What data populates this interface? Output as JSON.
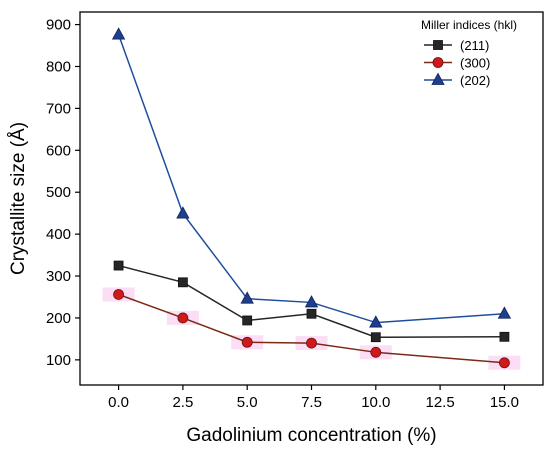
{
  "chart_data": {
    "type": "line",
    "xlabel": "Gadolinium concentration (%)",
    "ylabel": "Crystallite size (Å)",
    "xlim": [
      -1.5,
      16.5
    ],
    "ylim": [
      40,
      930
    ],
    "x_ticks": [
      0.0,
      2.5,
      5.0,
      7.5,
      10.0,
      12.5,
      15.0
    ],
    "x_tick_labels": [
      "0.0",
      "2.5",
      "5.0",
      "7.5",
      "10.0",
      "12.5",
      "15.0"
    ],
    "y_ticks": [
      100,
      200,
      300,
      400,
      500,
      600,
      700,
      800,
      900
    ],
    "y_tick_labels": [
      "100",
      "200",
      "300",
      "400",
      "500",
      "600",
      "700",
      "800",
      "900"
    ],
    "grid": false,
    "legend": {
      "title": "Miller indices (hkl)",
      "position": "top-right"
    },
    "x": [
      0.0,
      2.5,
      5.0,
      7.5,
      10.0,
      15.0
    ],
    "series": [
      {
        "name": "(211)",
        "values": [
          325,
          285,
          194,
          210,
          154,
          155
        ],
        "color": "#262626",
        "line_color": "#262626",
        "marker": "square"
      },
      {
        "name": "(300)",
        "values": [
          256,
          200,
          142,
          140,
          118,
          93
        ],
        "color": "#d01a1a",
        "line_color": "#7a2a16",
        "marker": "circle"
      },
      {
        "name": "(202)",
        "values": [
          876,
          449,
          246,
          237,
          189,
          210
        ],
        "color": "#1f3e8e",
        "line_color": "#1f4e9e",
        "marker": "triangle"
      }
    ]
  }
}
